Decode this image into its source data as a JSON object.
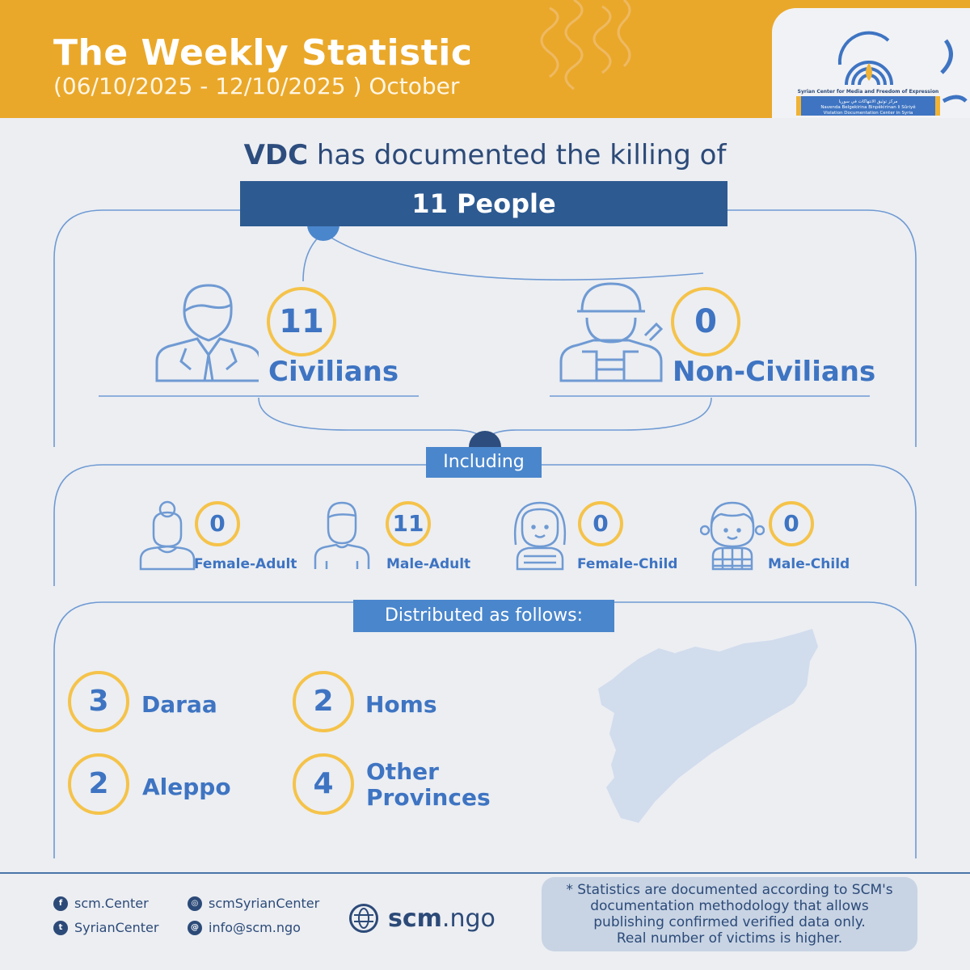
{
  "header": {
    "title": "The Weekly Statistic",
    "subtitle": "(06/10/2025 - 12/10/2025 ) October",
    "logo": {
      "org_name": "Syrian Center for Media and Freedom of Expression",
      "arabic_name": "مركز توثيق الانتهاكات في سوريا",
      "kurdish_name": "Navenda Belgekirina Binpêkirinan li Sûriyê",
      "english_name": "Violation Documentation Center in Syria"
    }
  },
  "headline": {
    "strong": "VDC",
    "rest": " has documented the killing of",
    "total_label": "11 People"
  },
  "categories": {
    "civilians": {
      "value": "11",
      "label": "Civilians"
    },
    "non_civilians": {
      "value": "0",
      "label": "Non-Civilians"
    }
  },
  "including": {
    "heading": "Including",
    "items": [
      {
        "value": "0",
        "label": "Female-Adult",
        "icon": "female-adult-icon"
      },
      {
        "value": "11",
        "label": "Male-Adult",
        "icon": "male-adult-icon"
      },
      {
        "value": "0",
        "label": "Female-Child",
        "icon": "female-child-icon"
      },
      {
        "value": "0",
        "label": "Male-Child",
        "icon": "male-child-icon"
      }
    ]
  },
  "distribution": {
    "heading": "Distributed as follows:",
    "items": [
      {
        "value": "3",
        "label": "Daraa"
      },
      {
        "value": "2",
        "label": "Homs"
      },
      {
        "value": "2",
        "label": "Aleppo"
      },
      {
        "value": "4",
        "label_line1": "Other",
        "label_line2": "Provinces"
      }
    ]
  },
  "footer": {
    "facebook": "scm.Center",
    "twitter": "SyrianCenter",
    "instagram": "scmSyrianCenter",
    "email": "info@scm.ngo",
    "website_bold": "scm",
    "website_rest": ".ngo",
    "note": [
      "* Statistics are documented according to SCM's",
      "documentation methodology that allows",
      "publishing confirmed verified data only.",
      "Real number of victims is higher."
    ]
  },
  "colors": {
    "header_bg": "#eaa82a",
    "accent_blue": "#3e74c2",
    "dark_blue": "#2d5a91",
    "ring_yellow": "#f5c34a",
    "page_bg": "#eceef2"
  }
}
